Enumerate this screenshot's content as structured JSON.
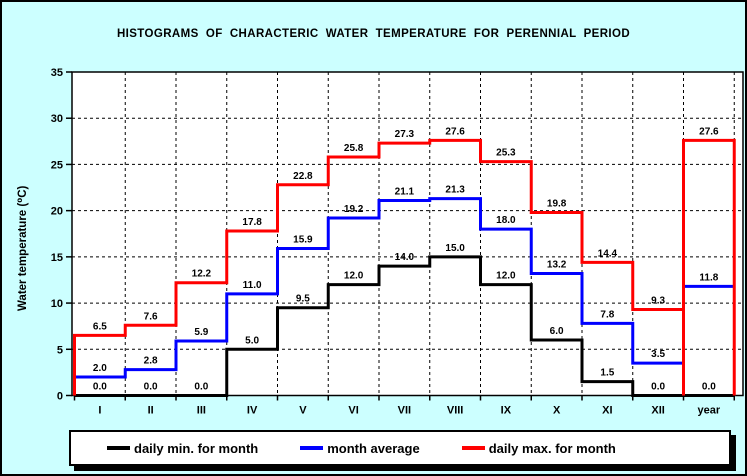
{
  "title": "HISTOGRAMS  OF  CHARACTERIC  WATER  TEMPERATURE  FOR  PERENNIAL  PERIOD",
  "y_axis_label": "Water temperature (⁰C)",
  "colors": {
    "background": "#CCFFFF",
    "plot_background": "#FFFFFF",
    "grid": "#000000",
    "text": "#000000"
  },
  "chart_data": {
    "type": "line",
    "subtype": "step-histogram",
    "title": "HISTOGRAMS OF CHARACTERIC WATER TEMPERATURE FOR PERENNIAL PERIOD",
    "xlabel": "",
    "ylabel": "Water temperature (⁰C)",
    "ylim": [
      0,
      35
    ],
    "yticks": [
      0,
      5,
      10,
      15,
      20,
      25,
      30,
      35
    ],
    "grid": true,
    "legend_position": "bottom",
    "categories": [
      "I",
      "II",
      "III",
      "IV",
      "V",
      "VI",
      "VII",
      "VIII",
      "IX",
      "X",
      "XI",
      "XII",
      "year"
    ],
    "series": [
      {
        "name": "daily min. for month",
        "color": "#000000",
        "values": [
          0.0,
          0.0,
          0.0,
          5.0,
          9.5,
          12.0,
          14.0,
          15.0,
          12.0,
          6.0,
          1.5,
          0.0,
          0.0
        ]
      },
      {
        "name": "month average",
        "color": "#0000FF",
        "values": [
          2.0,
          2.8,
          5.9,
          11.0,
          15.9,
          19.2,
          21.1,
          21.3,
          18.0,
          13.2,
          7.8,
          3.5,
          11.8
        ]
      },
      {
        "name": "daily max. for month",
        "color": "#FF0000",
        "values": [
          6.5,
          7.6,
          12.2,
          17.8,
          22.8,
          25.8,
          27.3,
          27.6,
          25.3,
          19.8,
          14.4,
          9.3,
          27.6
        ]
      }
    ]
  }
}
